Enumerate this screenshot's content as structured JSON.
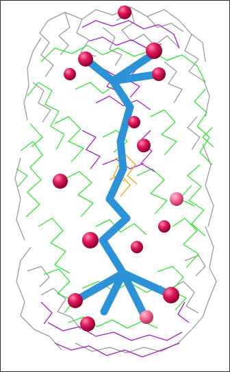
{
  "scene": {
    "background": "#ffffff",
    "frame_color": "#2a2a2a",
    "colors": {
      "mesh_gray": "#9a9a9a",
      "mesh_green": "#2ee62e",
      "mesh_magenta": "#a020c0",
      "mesh_orange": "#f5a000",
      "bond_blue": "#2b93d6",
      "atom_pink": "#e0185a"
    }
  }
}
